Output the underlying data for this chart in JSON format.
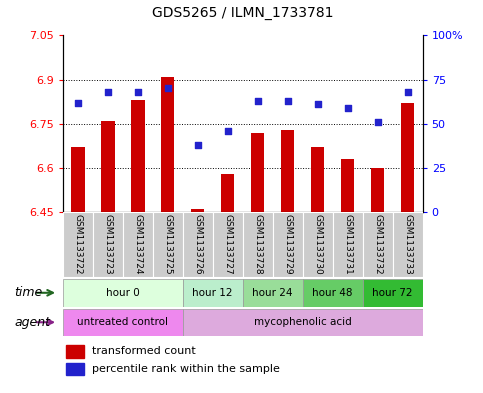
{
  "title": "GDS5265 / ILMN_1733781",
  "samples": [
    "GSM1133722",
    "GSM1133723",
    "GSM1133724",
    "GSM1133725",
    "GSM1133726",
    "GSM1133727",
    "GSM1133728",
    "GSM1133729",
    "GSM1133730",
    "GSM1133731",
    "GSM1133732",
    "GSM1133733"
  ],
  "bar_values": [
    6.67,
    6.76,
    6.83,
    6.91,
    6.46,
    6.58,
    6.72,
    6.73,
    6.67,
    6.63,
    6.6,
    6.82
  ],
  "dot_values_pct": [
    62,
    68,
    68,
    70,
    38,
    46,
    63,
    63,
    61,
    59,
    51,
    68
  ],
  "bar_bottom": 6.45,
  "ylim_left": [
    6.45,
    7.05
  ],
  "ylim_right": [
    0,
    100
  ],
  "yticks_left": [
    6.45,
    6.6,
    6.75,
    6.9,
    7.05
  ],
  "ytick_labels_left": [
    "6.45",
    "6.6",
    "6.75",
    "6.9",
    "7.05"
  ],
  "yticks_right": [
    0,
    25,
    50,
    75,
    100
  ],
  "ytick_labels_right": [
    "0",
    "25",
    "50",
    "75",
    "100%"
  ],
  "hlines": [
    6.6,
    6.75,
    6.9
  ],
  "bar_color": "#CC0000",
  "dot_color": "#2222CC",
  "time_groups": [
    {
      "label": "hour 0",
      "start": 0,
      "end": 4,
      "color": "#ddffdd"
    },
    {
      "label": "hour 12",
      "start": 4,
      "end": 6,
      "color": "#bbeecc"
    },
    {
      "label": "hour 24",
      "start": 6,
      "end": 8,
      "color": "#99dd99"
    },
    {
      "label": "hour 48",
      "start": 8,
      "end": 10,
      "color": "#66cc66"
    },
    {
      "label": "hour 72",
      "start": 10,
      "end": 12,
      "color": "#33bb33"
    }
  ],
  "agent_groups": [
    {
      "label": "untreated control",
      "start": 0,
      "end": 4,
      "color": "#ee88ee"
    },
    {
      "label": "mycophenolic acid",
      "start": 4,
      "end": 12,
      "color": "#ddaadd"
    }
  ],
  "legend_bar_label": "transformed count",
  "legend_dot_label": "percentile rank within the sample",
  "time_label": "time",
  "agent_label": "agent",
  "sample_bg_color": "#cccccc",
  "figsize": [
    4.83,
    3.93
  ],
  "dpi": 100
}
